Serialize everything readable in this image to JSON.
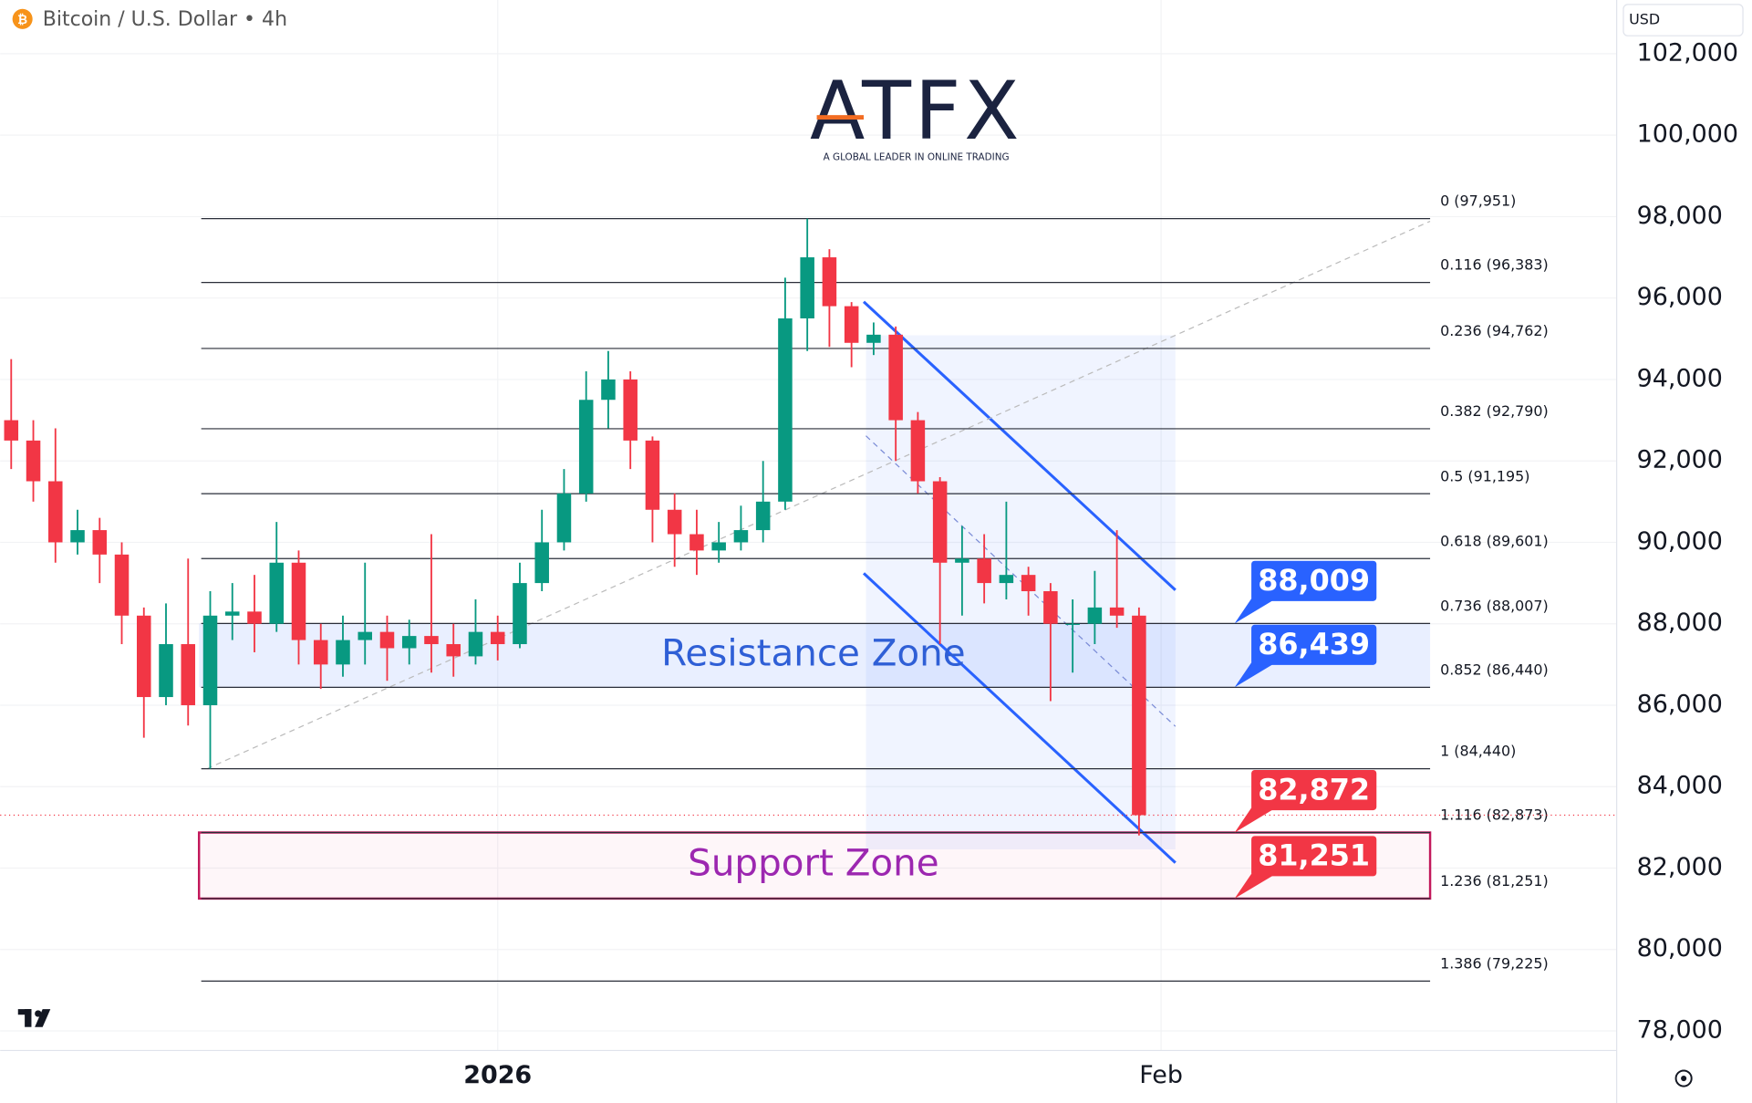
{
  "header": {
    "symbol": "Bitcoin / U.S. Dollar • 4h",
    "currency": "USD"
  },
  "logo": {
    "name": "ATFX",
    "tagline": "A GLOBAL LEADER IN ONLINE TRADING"
  },
  "chart_data": {
    "type": "candlestick",
    "categories": [
      null,
      null,
      null,
      null,
      null,
      null,
      null,
      null,
      null,
      null,
      null,
      null,
      null,
      null,
      null,
      null,
      null,
      null,
      null,
      null,
      null,
      null,
      "2026",
      null,
      null,
      null,
      null,
      null,
      null,
      null,
      null,
      null,
      null,
      null,
      null,
      null,
      null,
      null,
      null,
      null,
      null,
      null,
      null,
      null,
      null,
      null,
      null,
      null,
      null,
      null,
      null,
      null,
      "Feb",
      null,
      null,
      null,
      null,
      null,
      null,
      null,
      null,
      null,
      null,
      null,
      null,
      null,
      null,
      null,
      null,
      null,
      null,
      null,
      null
    ],
    "open": [
      93000,
      92500,
      91500,
      90000,
      90300,
      89700,
      88200,
      86200,
      87500,
      86000,
      88200,
      88300,
      88000,
      89500,
      87600,
      87000,
      87600,
      87800,
      87400,
      87700,
      87500,
      87200,
      87800,
      87500,
      89000,
      90000,
      91200,
      93500,
      94000,
      92500,
      90800,
      90200,
      89800,
      90000,
      90300,
      91000,
      95500,
      97000,
      95800,
      94900,
      95100,
      93000,
      91500,
      89500,
      89600,
      89000,
      89200,
      88800,
      88000,
      88000,
      88400,
      88200,
      null,
      null,
      null,
      null,
      null,
      null,
      null,
      null,
      null,
      null,
      null,
      null,
      null,
      null,
      null,
      null,
      null,
      null,
      null,
      null,
      null
    ],
    "high": [
      94500,
      93000,
      92800,
      90800,
      90600,
      90000,
      88400,
      88500,
      89600,
      88800,
      89000,
      89200,
      90500,
      89800,
      88000,
      88200,
      89500,
      88200,
      88100,
      90200,
      88000,
      88600,
      88200,
      89500,
      90800,
      91800,
      94200,
      94700,
      94200,
      92600,
      91200,
      90800,
      90500,
      90900,
      92000,
      96500,
      97951,
      97200,
      95900,
      95400,
      95300,
      93200,
      91600,
      90400,
      90200,
      91000,
      89400,
      89000,
      88600,
      89300,
      90300,
      88400,
      null,
      null,
      null,
      null,
      null,
      null,
      null,
      null,
      null,
      null,
      null,
      null,
      null,
      null,
      null,
      null,
      null,
      null,
      null,
      null,
      null
    ],
    "low": [
      91800,
      91000,
      89500,
      89700,
      89000,
      87500,
      85200,
      86000,
      85500,
      84440,
      87600,
      87300,
      87800,
      87000,
      86400,
      86700,
      87000,
      86600,
      87000,
      86800,
      86700,
      87000,
      87100,
      87400,
      88800,
      89800,
      91000,
      92800,
      91800,
      90000,
      89400,
      89200,
      89500,
      89800,
      90000,
      90800,
      94700,
      94800,
      94300,
      94600,
      92000,
      91200,
      87500,
      88200,
      88500,
      88600,
      88200,
      86100,
      86800,
      87500,
      87900,
      82800,
      null,
      null,
      null,
      null,
      null,
      null,
      null,
      null,
      null,
      null,
      null,
      null,
      null,
      null,
      null,
      null,
      null,
      null,
      null,
      null,
      null
    ],
    "close": [
      92500,
      91500,
      90000,
      90300,
      89700,
      88200,
      86200,
      87500,
      86000,
      88200,
      88300,
      88000,
      89500,
      87600,
      87000,
      87600,
      87800,
      87400,
      87700,
      87500,
      87200,
      87800,
      87500,
      89000,
      90000,
      91200,
      93500,
      94000,
      92500,
      90800,
      90200,
      89800,
      90000,
      90300,
      91000,
      95500,
      97000,
      95800,
      94900,
      95100,
      93000,
      91500,
      89500,
      89600,
      89000,
      89200,
      88800,
      88000,
      88000,
      88400,
      88200,
      83300,
      null,
      null,
      null,
      null,
      null,
      null,
      null,
      null,
      null,
      null,
      null,
      null,
      null,
      null,
      null,
      null,
      null,
      null,
      null,
      null,
      null
    ],
    "up_color": "#089981",
    "down_color": "#f23645",
    "ylim": [
      77520,
      103320
    ],
    "yticks": [
      {
        "value": 78000,
        "label": "78,000"
      },
      {
        "value": 80000,
        "label": "80,000"
      },
      {
        "value": 82000,
        "label": "82,000"
      },
      {
        "value": 84000,
        "label": "84,000"
      },
      {
        "value": 86000,
        "label": "86,000"
      },
      {
        "value": 88000,
        "label": "88,000"
      },
      {
        "value": 90000,
        "label": "90,000"
      },
      {
        "value": 92000,
        "label": "92,000"
      },
      {
        "value": 94000,
        "label": "94,000"
      },
      {
        "value": 96000,
        "label": "96,000"
      },
      {
        "value": 98000,
        "label": "98,000"
      },
      {
        "value": 100000,
        "label": "100,000"
      },
      {
        "value": 102000,
        "label": "102,000"
      }
    ],
    "grid": true,
    "fib_levels": [
      {
        "value": 97951,
        "label": "0 (97,951)"
      },
      {
        "value": 96383,
        "label": "0.116 (96,383)"
      },
      {
        "value": 94762,
        "label": "0.236 (94,762)"
      },
      {
        "value": 92790,
        "label": "0.382 (92,790)"
      },
      {
        "value": 91195,
        "label": "0.5 (91,195)"
      },
      {
        "value": 89601,
        "label": "0.618 (89,601)"
      },
      {
        "value": 88007,
        "label": "0.736 (88,007)"
      },
      {
        "value": 86440,
        "label": "0.852 (86,440)"
      },
      {
        "value": 84440,
        "label": "1 (84,440)"
      },
      {
        "value": 82873,
        "label": "1.116 (82,873)"
      },
      {
        "value": 81251,
        "label": "1.236 (81,251)"
      },
      {
        "value": 79225,
        "label": "1.386 (79,225)"
      }
    ],
    "zones": [
      {
        "name": "Resistance Zone",
        "from": 86440,
        "to": 88007,
        "color": "#2f5fd6"
      },
      {
        "name": "Support Zone",
        "from": 81251,
        "to": 82873,
        "color": "#9c27b0"
      }
    ],
    "price_labels": [
      {
        "value": 88009,
        "label": "88,009",
        "color": "#2962ff"
      },
      {
        "value": 86439,
        "label": "86,439",
        "color": "#2962ff"
      },
      {
        "value": 82872,
        "label": "82,872",
        "color": "#f23645"
      },
      {
        "value": 81251,
        "label": "81,251",
        "color": "#f23645"
      }
    ]
  }
}
